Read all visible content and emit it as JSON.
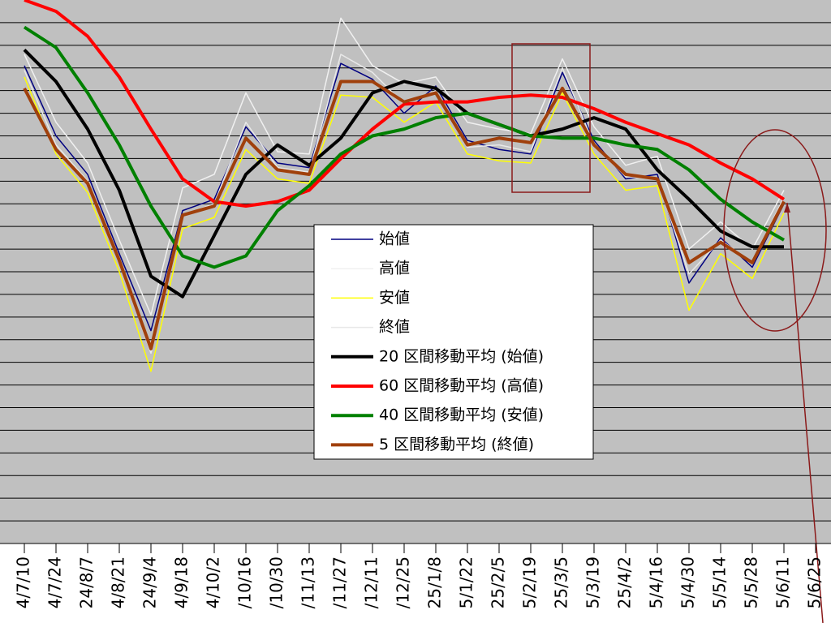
{
  "chart_data": {
    "type": "line",
    "categories": [
      "4/7/10",
      "4/7/24",
      "24/8/7",
      "4/8/21",
      "24/9/4",
      "4/9/18",
      "4/10/2",
      "/10/16",
      "/10/30",
      "/11/13",
      "/11/27",
      "/12/11",
      "/12/25",
      "25/1/8",
      "5/1/22",
      "25/2/5",
      "5/2/19",
      "25/3/5",
      "5/3/19",
      "25/4/2",
      "5/4/16",
      "5/4/30",
      "5/5/14",
      "5/5/28",
      "5/6/11",
      "5/6/25"
    ],
    "ylim": [
      0,
      24
    ],
    "yticks": [
      1,
      2,
      3,
      4,
      5,
      6,
      7,
      8,
      9,
      10,
      11,
      12,
      13,
      14,
      15,
      16,
      17,
      18,
      19,
      20,
      21,
      22,
      23
    ],
    "grid": true,
    "series": [
      {
        "name": "始値",
        "color": "#000080",
        "width": 1.5,
        "values": [
          21.1,
          18.0,
          16.3,
          12.8,
          9.4,
          14.7,
          15.2,
          18.4,
          16.8,
          16.6,
          21.2,
          20.5,
          19.0,
          20.2,
          17.8,
          17.4,
          17.2,
          20.8,
          17.8,
          16.1,
          16.3,
          11.5,
          13.5,
          12.2,
          15.0,
          null
        ]
      },
      {
        "name": "高値",
        "color": "#f0f0f0",
        "width": 1.5,
        "values": [
          21.6,
          18.6,
          16.8,
          13.4,
          10.1,
          15.7,
          16.3,
          19.9,
          17.3,
          17.2,
          23.2,
          21.1,
          20.3,
          20.6,
          18.6,
          18.3,
          18.1,
          21.4,
          18.4,
          16.7,
          17.1,
          13.0,
          14.2,
          13.0,
          15.6,
          null
        ]
      },
      {
        "name": "安値",
        "color": "#ffff00",
        "width": 1.5,
        "values": [
          20.6,
          17.2,
          15.5,
          12.0,
          7.6,
          13.9,
          14.4,
          17.4,
          16.1,
          15.9,
          19.8,
          19.7,
          18.6,
          19.5,
          17.2,
          16.9,
          16.8,
          19.9,
          17.2,
          15.6,
          15.8,
          10.3,
          12.8,
          11.7,
          14.6,
          null
        ]
      },
      {
        "name": "終値",
        "color": "#e8e8e8",
        "width": 1.5,
        "values": [
          20.9,
          17.6,
          16.0,
          12.5,
          8.4,
          14.5,
          15.0,
          18.6,
          16.6,
          16.4,
          21.6,
          20.8,
          19.4,
          20.0,
          17.5,
          17.6,
          17.3,
          21.0,
          17.6,
          16.2,
          16.1,
          11.9,
          13.4,
          12.4,
          15.3,
          null
        ]
      },
      {
        "name": "20 区間移動平均 (始値)",
        "color": "#000000",
        "width": 4,
        "values": [
          21.8,
          20.4,
          18.3,
          15.6,
          11.8,
          10.9,
          13.6,
          16.3,
          17.6,
          16.7,
          17.9,
          19.9,
          20.4,
          20.1,
          19.0,
          18.5,
          18.0,
          18.3,
          18.8,
          18.3,
          16.5,
          15.2,
          13.8,
          13.1,
          13.1,
          null
        ]
      },
      {
        "name": "60 区間移動平均 (高値)",
        "color": "#ff0000",
        "width": 4,
        "values": [
          24.0,
          23.5,
          22.4,
          20.6,
          18.3,
          16.1,
          15.1,
          14.9,
          15.1,
          15.6,
          17.0,
          18.3,
          19.4,
          19.5,
          19.5,
          19.7,
          19.8,
          19.7,
          19.2,
          18.6,
          18.1,
          17.6,
          16.8,
          16.1,
          15.2,
          null
        ]
      },
      {
        "name": "40 区間移動平均 (安値)",
        "color": "#008000",
        "width": 4,
        "values": [
          22.8,
          21.9,
          19.9,
          17.6,
          14.9,
          12.7,
          12.2,
          12.7,
          14.7,
          15.8,
          17.2,
          18.0,
          18.3,
          18.8,
          19.0,
          18.5,
          18.0,
          17.9,
          17.9,
          17.6,
          17.4,
          16.5,
          15.2,
          14.2,
          13.4,
          null
        ]
      },
      {
        "name": "5 区間移動平均 (終値)",
        "color": "#a0400c",
        "width": 4,
        "values": [
          20.1,
          17.4,
          15.9,
          12.5,
          8.6,
          14.5,
          14.9,
          17.9,
          16.5,
          16.3,
          20.4,
          20.4,
          19.5,
          19.9,
          17.6,
          17.9,
          17.7,
          20.1,
          17.6,
          16.3,
          16.1,
          12.4,
          13.3,
          12.4,
          15.1,
          null
        ]
      }
    ]
  }
}
